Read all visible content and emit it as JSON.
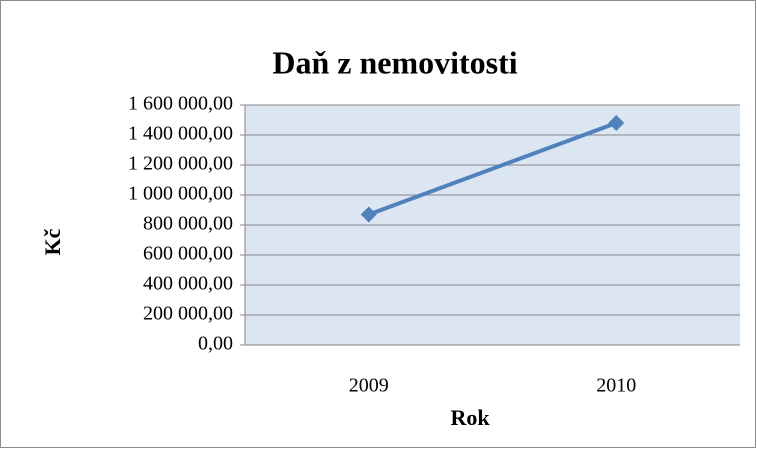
{
  "chart_data": {
    "type": "line",
    "title": "Daň z nemovitosti",
    "x_label": "Rok",
    "y_label": "Kč",
    "categories": [
      "2009",
      "2010"
    ],
    "series": [
      {
        "name": "Daň z nemovitosti",
        "color": "#4f81bd",
        "values": [
          870000,
          1480000
        ]
      }
    ],
    "ylim": [
      0,
      1600000
    ],
    "yticks": [
      {
        "value": 0,
        "label": "0,00"
      },
      {
        "value": 200000,
        "label": "200 000,00"
      },
      {
        "value": 400000,
        "label": "400 000,00"
      },
      {
        "value": 600000,
        "label": "600 000,00"
      },
      {
        "value": 800000,
        "label": "800 000,00"
      },
      {
        "value": 1000000,
        "label": "1 000 000,00"
      },
      {
        "value": 1200000,
        "label": "1 200 000,00"
      },
      {
        "value": 1400000,
        "label": "1 400 000,00"
      },
      {
        "value": 1600000,
        "label": "1 600 000,00"
      }
    ],
    "grid": true,
    "plot_background": "#dce6f2"
  }
}
